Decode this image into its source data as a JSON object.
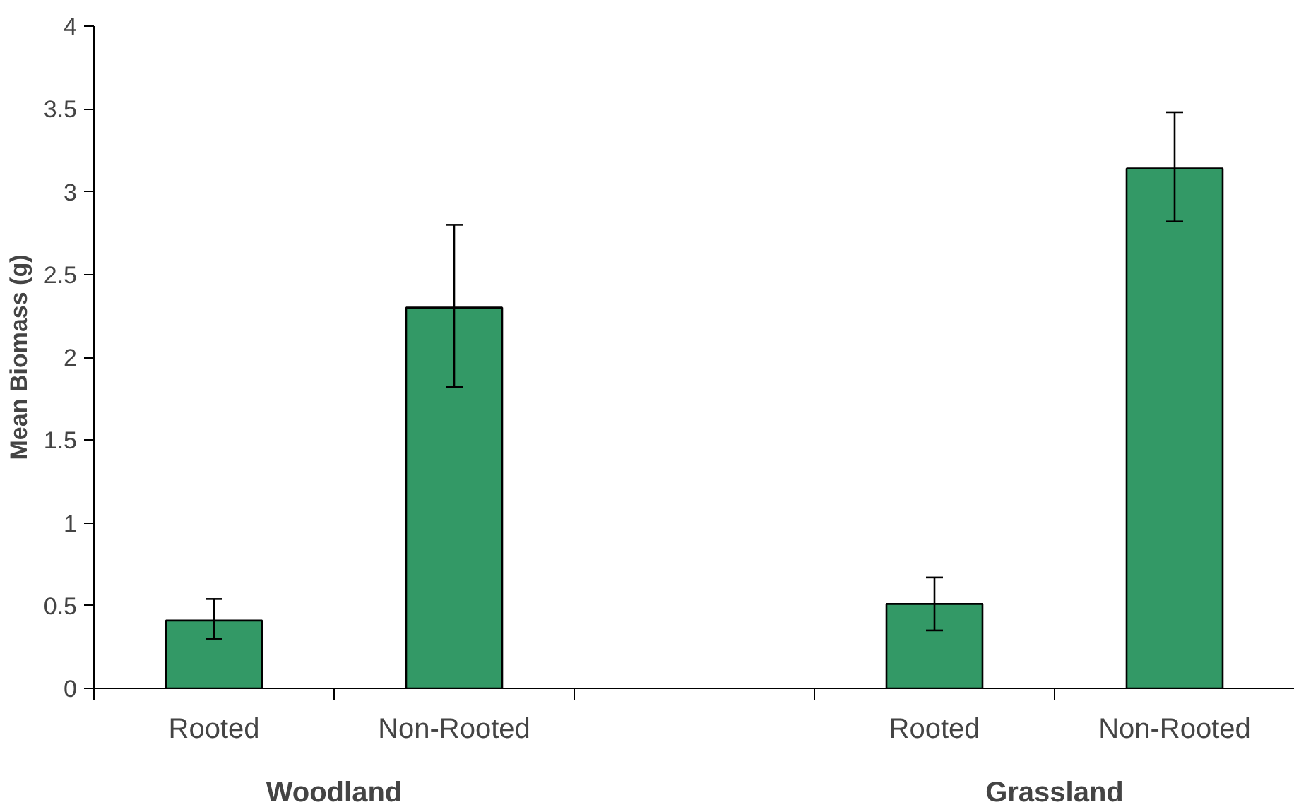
{
  "chart_data": {
    "type": "bar",
    "ylabel": "Mean Biomass (g)",
    "categories": [
      "Rooted",
      "Non-Rooted",
      null,
      "Rooted",
      "Non-Rooted"
    ],
    "values": [
      0.41,
      2.3,
      null,
      0.51,
      3.14
    ],
    "errors": [
      [
        0.3,
        0.54
      ],
      [
        1.82,
        2.8
      ],
      null,
      [
        0.35,
        0.67
      ],
      [
        2.82,
        3.48
      ]
    ],
    "color": "#339966",
    "ylim": [
      0,
      4
    ],
    "yticks": [
      0,
      0.5,
      1,
      1.5,
      2,
      2.5,
      3,
      3.5,
      4
    ],
    "annotations": [
      "Woodland",
      "Grassland"
    ],
    "grid": false
  }
}
